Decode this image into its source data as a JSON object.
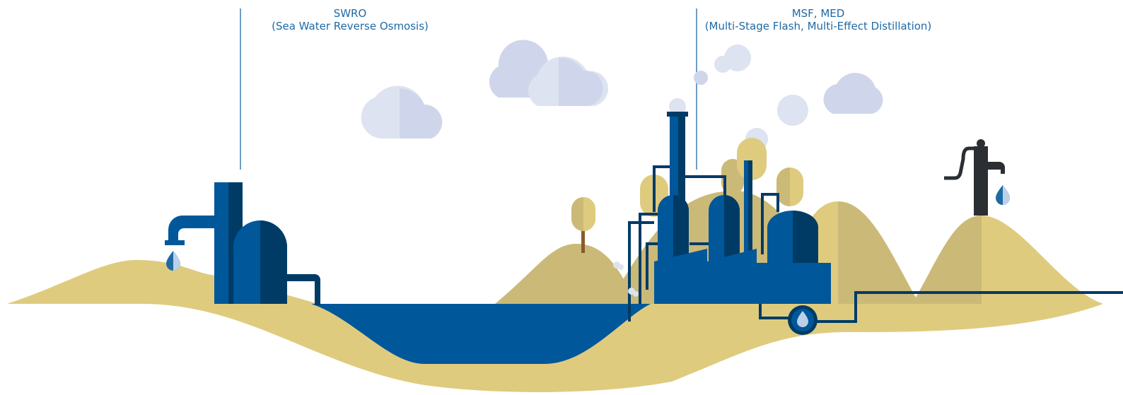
{
  "labels": [
    {
      "acronym": "SWRO",
      "full": "(Sea Water Reverse Osmosis)"
    },
    {
      "acronym": "MSF, MED",
      "full": "(Multi-Stage Flash, Multi-Effect Distillation)"
    }
  ]
}
